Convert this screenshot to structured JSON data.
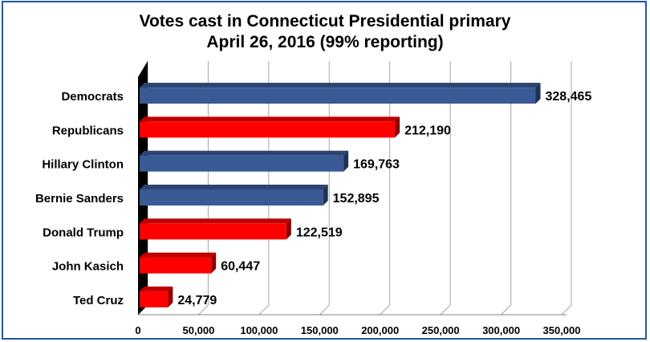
{
  "chart_data": {
    "type": "bar",
    "orientation": "horizontal",
    "title": "Votes cast in Connecticut Presidential primary",
    "subtitle": "April 26, 2016 (99% reporting)",
    "categories": [
      "Democrats",
      "Republicans",
      "Hillary Clinton",
      "Bernie Sanders",
      "Donald Trump",
      "John Kasich",
      "Ted Cruz"
    ],
    "values": [
      328465,
      212190,
      169763,
      152895,
      122519,
      60447,
      24779
    ],
    "value_labels": [
      "328,465",
      "212,190",
      "169,763",
      "152,895",
      "122,519",
      "60,447",
      "24,779"
    ],
    "bar_colors": [
      "#3a5a96",
      "#ff0000",
      "#3a5a96",
      "#3a5a96",
      "#ff0000",
      "#ff0000",
      "#ff0000"
    ],
    "xlim": [
      0,
      350000
    ],
    "x_ticks": [
      0,
      50000,
      100000,
      150000,
      200000,
      250000,
      300000,
      350000
    ],
    "x_tick_labels": [
      "0",
      "50,000",
      "100,000",
      "150,000",
      "200,000",
      "250,000",
      "300,000",
      "350,000"
    ],
    "grid": true,
    "style": "3d"
  }
}
